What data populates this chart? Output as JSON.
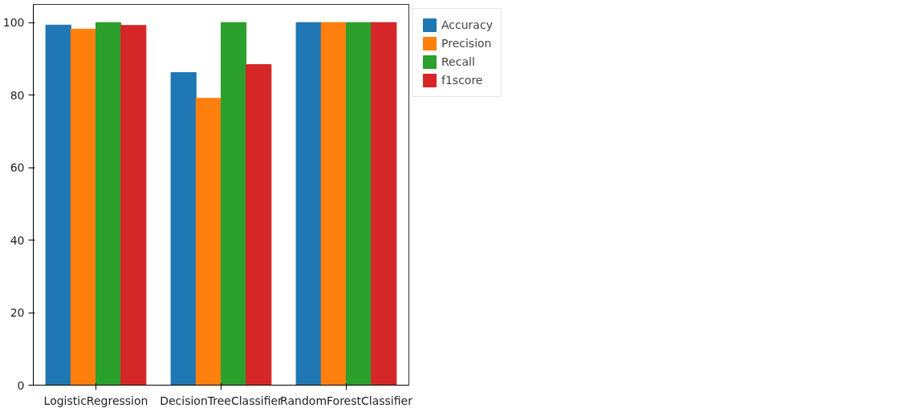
{
  "chart_data": {
    "type": "bar",
    "categories": [
      "LogisticRegression",
      "DecisionTreeClassifier",
      "RandomForestClassifier"
    ],
    "series": [
      {
        "name": "Accuracy",
        "color": "#1f77b4",
        "values": [
          99.3,
          86.2,
          100
        ]
      },
      {
        "name": "Precision",
        "color": "#ff7f0e",
        "values": [
          98.2,
          79.1,
          100
        ]
      },
      {
        "name": "Recall",
        "color": "#2ca02c",
        "values": [
          100,
          100,
          100
        ]
      },
      {
        "name": "f1score",
        "color": "#d62728",
        "values": [
          99.2,
          88.4,
          100
        ]
      }
    ],
    "ylim": [
      0,
      105
    ],
    "yticks": [
      0,
      20,
      40,
      60,
      80,
      100
    ],
    "grid": false,
    "legend": "right"
  }
}
